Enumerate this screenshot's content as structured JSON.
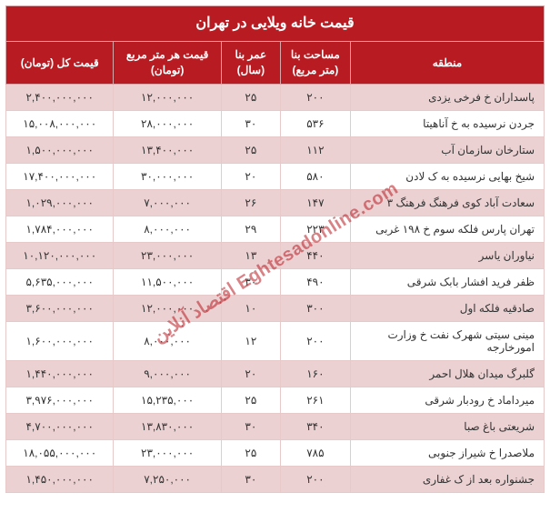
{
  "title": "قیمت خانه ویلایی در تهران",
  "columns": {
    "region": "منطقه",
    "area": "مساحت  بنا (متر مربع)",
    "age": "عمر بنا (سال)",
    "price_per_m": "قیمت هر متر مربع (تومان)",
    "total_price": "قیمت کل (تومان)"
  },
  "col_widths": {
    "region": "36%",
    "area": "13%",
    "age": "11%",
    "price_per_m": "20%",
    "total_price": "20%"
  },
  "rows": [
    {
      "region": "پاسداران خ فرخی یزدی",
      "area": "۲۰۰",
      "age": "۲۵",
      "price_per_m": "۱۲,۰۰۰,۰۰۰",
      "total_price": "۲,۴۰۰,۰۰۰,۰۰۰"
    },
    {
      "region": "جردن نرسیده به خ آناهیتا",
      "area": "۵۳۶",
      "age": "۳۰",
      "price_per_m": "۲۸,۰۰۰,۰۰۰",
      "total_price": "۱۵,۰۰۸,۰۰۰,۰۰۰"
    },
    {
      "region": "ستارخان سازمان آب",
      "area": "۱۱۲",
      "age": "۲۵",
      "price_per_m": "۱۳,۴۰۰,۰۰۰",
      "total_price": "۱,۵۰۰,۰۰۰,۰۰۰"
    },
    {
      "region": "شیخ بهایی نرسیده به ک لادن",
      "area": "۵۸۰",
      "age": "۲۰",
      "price_per_m": "۳۰,۰۰۰,۰۰۰",
      "total_price": "۱۷,۴۰۰,۰۰۰,۰۰۰"
    },
    {
      "region": "سعادت آباد کوی فرهنگ فرهنگ ۳",
      "area": "۱۴۷",
      "age": "۲۶",
      "price_per_m": "۷,۰۰۰,۰۰۰",
      "total_price": "۱,۰۲۹,۰۰۰,۰۰۰"
    },
    {
      "region": "تهران پارس فلکه سوم خ ۱۹۸ غربی",
      "area": "۲۲۳",
      "age": "۲۹",
      "price_per_m": "۸,۰۰۰,۰۰۰",
      "total_price": "۱,۷۸۴,۰۰۰,۰۰۰"
    },
    {
      "region": "نیاوران یاسر",
      "area": "۴۴۰",
      "age": "۱۳",
      "price_per_m": "۲۳,۰۰۰,۰۰۰",
      "total_price": "۱۰,۱۲۰,۰۰۰,۰۰۰"
    },
    {
      "region": "ظفر فرید افشار بابک شرقی",
      "area": "۴۹۰",
      "age": "۳۰",
      "price_per_m": "۱۱,۵۰۰,۰۰۰",
      "total_price": "۵,۶۳۵,۰۰۰,۰۰۰"
    },
    {
      "region": "صادقیه فلکه اول",
      "area": "۳۰۰",
      "age": "۱۰",
      "price_per_m": "۱۲,۰۰۰,۰۰۰",
      "total_price": "۳,۶۰۰,۰۰۰,۰۰۰"
    },
    {
      "region": "مینی سیتی شهرک نفت خ وزارت امورخارجه",
      "area": "۲۰۰",
      "age": "۱۲",
      "price_per_m": "۸,۰۰۰,۰۰۰",
      "total_price": "۱,۶۰۰,۰۰۰,۰۰۰"
    },
    {
      "region": "گلبرگ میدان هلال احمر",
      "area": "۱۶۰",
      "age": "۲۰",
      "price_per_m": "۹,۰۰۰,۰۰۰",
      "total_price": "۱,۴۴۰,۰۰۰,۰۰۰"
    },
    {
      "region": "میرداماد خ رودبار شرقی",
      "area": "۲۶۱",
      "age": "۲۵",
      "price_per_m": "۱۵,۲۳۵,۰۰۰",
      "total_price": "۳,۹۷۶,۰۰۰,۰۰۰"
    },
    {
      "region": "شریعتی باغ صبا",
      "area": "۳۴۰",
      "age": "۳۰",
      "price_per_m": "۱۳,۸۳۰,۰۰۰",
      "total_price": "۴,۷۰۰,۰۰۰,۰۰۰"
    },
    {
      "region": "ملاصدرا خ شیراز جنوبی",
      "area": "۷۸۵",
      "age": "۲۵",
      "price_per_m": "۲۳,۰۰۰,۰۰۰",
      "total_price": "۱۸,۰۵۵,۰۰۰,۰۰۰"
    },
    {
      "region": "جشنواره بعد از ک غفاری",
      "area": "۲۰۰",
      "age": "۳۰",
      "price_per_m": "۷,۲۵۰,۰۰۰",
      "total_price": "۱,۴۵۰,۰۰۰,۰۰۰"
    }
  ],
  "watermark": "Eghtesadonline.com اقتصاد آنلاین",
  "colors": {
    "header_bg": "#b81c22",
    "header_fg": "#ffffff",
    "row_odd_bg": "#ecd1d2",
    "row_even_bg": "#ffffff",
    "border": "#e8c9ca"
  },
  "fonts": {
    "title_size": 16,
    "header_size": 12,
    "cell_size": 12
  }
}
